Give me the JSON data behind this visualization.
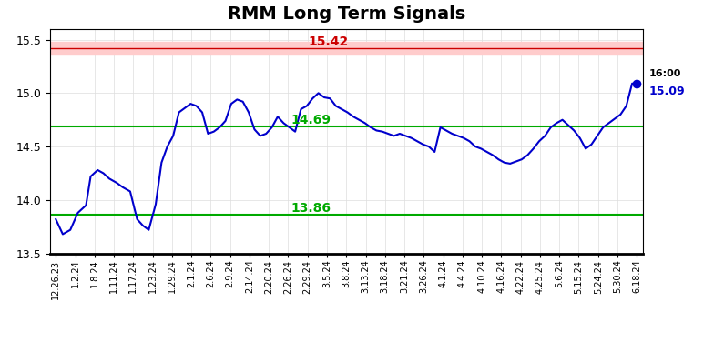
{
  "title": "RMM Long Term Signals",
  "hline_red": 15.42,
  "hline_green_upper": 14.69,
  "hline_green_lower": 13.86,
  "hline_red_color": "#cc0000",
  "hline_red_bg": "#ffcccc",
  "hline_green_color": "#00aa00",
  "last_value": 15.09,
  "last_label": "16:00",
  "ylim": [
    13.5,
    15.6
  ],
  "line_color": "#0000cc",
  "xtick_labels": [
    "12.26.23",
    "1.2.24",
    "1.8.24",
    "1.11.24",
    "1.17.24",
    "1.23.24",
    "1.29.24",
    "2.1.24",
    "2.6.24",
    "2.9.24",
    "2.14.24",
    "2.20.24",
    "2.26.24",
    "2.29.24",
    "3.5.24",
    "3.8.24",
    "3.13.24",
    "3.18.24",
    "3.21.24",
    "3.26.24",
    "4.1.24",
    "4.4.24",
    "4.10.24",
    "4.16.24",
    "4.22.24",
    "4.25.24",
    "5.6.24",
    "5.15.24",
    "5.24.24",
    "5.30.24",
    "6.18.24"
  ],
  "x_line": [
    0.0,
    0.012,
    0.025,
    0.038,
    0.052,
    0.06,
    0.072,
    0.082,
    0.092,
    0.105,
    0.115,
    0.128,
    0.14,
    0.15,
    0.16,
    0.172,
    0.182,
    0.192,
    0.202,
    0.212,
    0.222,
    0.232,
    0.242,
    0.252,
    0.262,
    0.272,
    0.282,
    0.292,
    0.302,
    0.312,
    0.322,
    0.332,
    0.342,
    0.352,
    0.362,
    0.372,
    0.382,
    0.392,
    0.402,
    0.412,
    0.422,
    0.432,
    0.442,
    0.452,
    0.462,
    0.472,
    0.482,
    0.492,
    0.502,
    0.512,
    0.522,
    0.532,
    0.542,
    0.552,
    0.562,
    0.572,
    0.582,
    0.592,
    0.602,
    0.612,
    0.622,
    0.632,
    0.642,
    0.652,
    0.662,
    0.672,
    0.682,
    0.692,
    0.702,
    0.712,
    0.722,
    0.732,
    0.742,
    0.752,
    0.762,
    0.772,
    0.782,
    0.792,
    0.802,
    0.812,
    0.822,
    0.832,
    0.842,
    0.852,
    0.862,
    0.872,
    0.882,
    0.892,
    0.902,
    0.912,
    0.922,
    0.932,
    0.942,
    0.952,
    0.962,
    0.972,
    0.982,
    0.992,
    1.0
  ],
  "y_line": [
    13.82,
    13.68,
    13.72,
    13.88,
    13.95,
    14.22,
    14.28,
    14.25,
    14.2,
    14.16,
    14.12,
    14.08,
    13.82,
    13.76,
    13.72,
    13.96,
    14.35,
    14.5,
    14.6,
    14.82,
    14.86,
    14.9,
    14.88,
    14.82,
    14.62,
    14.64,
    14.68,
    14.74,
    14.9,
    14.94,
    14.92,
    14.82,
    14.66,
    14.6,
    14.62,
    14.68,
    14.78,
    14.72,
    14.68,
    14.64,
    14.85,
    14.88,
    14.95,
    15.0,
    14.96,
    14.95,
    14.88,
    14.85,
    14.82,
    14.78,
    14.75,
    14.72,
    14.68,
    14.65,
    14.64,
    14.62,
    14.6,
    14.62,
    14.6,
    14.58,
    14.55,
    14.52,
    14.5,
    14.45,
    14.68,
    14.65,
    14.62,
    14.6,
    14.58,
    14.55,
    14.5,
    14.48,
    14.45,
    14.42,
    14.38,
    14.35,
    14.34,
    14.36,
    14.38,
    14.42,
    14.48,
    14.55,
    14.6,
    14.68,
    14.72,
    14.75,
    14.7,
    14.65,
    14.58,
    14.48,
    14.52,
    14.6,
    14.68,
    14.72,
    14.76,
    14.8,
    14.88,
    15.09,
    15.09
  ]
}
